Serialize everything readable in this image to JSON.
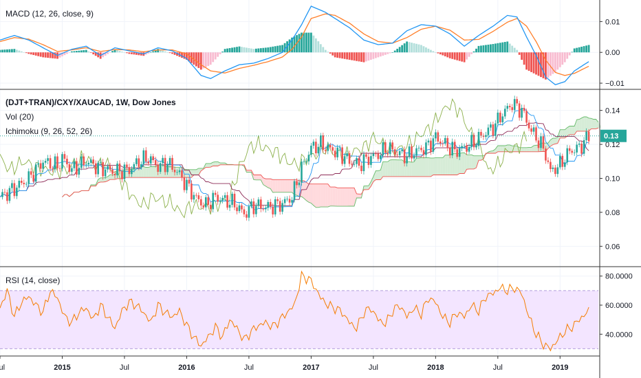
{
  "colors": {
    "up": "#26a69a",
    "up_light": "#b2dfdb",
    "down": "#ef5350",
    "down_light": "#f8bbd0",
    "macd_line": "#2196f3",
    "signal_line": "#ff7f2a",
    "rsi_line": "#f57c00",
    "rsi_band": "#f3e5ff",
    "rsi_band_border": "#b39ddb",
    "tenkan": "#2196f3",
    "kijun": "#8d2b57",
    "chikou": "#8bb04a",
    "span_a": "#66bb6a",
    "span_b": "#ef5350",
    "cloud_bull": "#c8e6c9",
    "cloud_bear": "#ffcdd2",
    "price_tag": "#26a69a",
    "pane_border": "#333333",
    "grid": "#f0f3fa"
  },
  "macd_pane": {
    "title": "MACD (12, 26, close, 9)",
    "axis_ticks": [
      {
        "value": 0.01,
        "label": "0.01"
      },
      {
        "value": 0.0,
        "label": "0.00"
      },
      {
        "value": -0.01,
        "label": "−0.01"
      }
    ]
  },
  "price_pane": {
    "title": "(DJT+TRAN)/CXY/XAUCAD, 1W, Dow Jones",
    "vol_title": "Vol (20)",
    "ichimoku_title": "Ichimoku (9, 26, 52, 26)",
    "axis_ticks": [
      {
        "value": 0.14,
        "label": "0.14"
      },
      {
        "value": 0.12,
        "label": "0.12"
      },
      {
        "value": 0.1,
        "label": "0.10"
      },
      {
        "value": 0.08,
        "label": "0.08"
      },
      {
        "value": 0.06,
        "label": "0.06"
      }
    ],
    "last_price_label": "0.13",
    "last_price_value": 0.125
  },
  "rsi_pane": {
    "title": "RSI (14, close)",
    "axis_ticks": [
      {
        "value": 80,
        "label": "80.0000"
      },
      {
        "value": 60,
        "label": "60.0000"
      },
      {
        "value": 40,
        "label": "40.0000"
      }
    ],
    "band_upper": 70,
    "band_lower": 30
  },
  "time_axis": [
    {
      "label": "Jul",
      "week": 0
    },
    {
      "label": "2015",
      "week": 26,
      "bold": true
    },
    {
      "label": "Jul",
      "week": 52
    },
    {
      "label": "2016",
      "week": 78,
      "bold": true
    },
    {
      "label": "Jul",
      "week": 104
    },
    {
      "label": "2017",
      "week": 130,
      "bold": true
    },
    {
      "label": "Jul",
      "week": 156
    },
    {
      "label": "2018",
      "week": 182,
      "bold": true
    },
    {
      "label": "Jul",
      "week": 208
    },
    {
      "label": "2019",
      "week": 234,
      "bold": true
    }
  ],
  "chart_data": [
    {
      "type": "line",
      "title": "MACD (12, 26, close, 9)",
      "x_unit": "weeks since Jul 2014",
      "ylim": [
        -0.012,
        0.017
      ],
      "series": [
        {
          "name": "MACD",
          "points": [
            [
              0,
              0.004
            ],
            [
              6,
              0.0055
            ],
            [
              12,
              0.004
            ],
            [
              18,
              0.0015
            ],
            [
              24,
              -0.001
            ],
            [
              30,
              0.001
            ],
            [
              36,
              0.002
            ],
            [
              42,
              -0.001
            ],
            [
              48,
              0.0015
            ],
            [
              54,
              0.0005
            ],
            [
              60,
              -0.0005
            ],
            [
              66,
              0.0015
            ],
            [
              72,
              0.0005
            ],
            [
              78,
              -0.002
            ],
            [
              84,
              -0.0075
            ],
            [
              88,
              -0.0085
            ],
            [
              94,
              -0.006
            ],
            [
              100,
              -0.004
            ],
            [
              106,
              -0.0035
            ],
            [
              112,
              -0.002
            ],
            [
              118,
              0.0
            ],
            [
              122,
              0.004
            ],
            [
              126,
              0.009
            ],
            [
              130,
              0.015
            ],
            [
              136,
              0.013
            ],
            [
              140,
              0.011
            ],
            [
              146,
              0.008
            ],
            [
              152,
              0.004
            ],
            [
              158,
              0.0025
            ],
            [
              164,
              0.003
            ],
            [
              170,
              0.007
            ],
            [
              176,
              0.009
            ],
            [
              182,
              0.0085
            ],
            [
              188,
              0.006
            ],
            [
              194,
              0.002
            ],
            [
              200,
              0.0055
            ],
            [
              206,
              0.0085
            ],
            [
              212,
              0.012
            ],
            [
              216,
              0.0115
            ],
            [
              220,
              0.005
            ],
            [
              224,
              -0.001
            ],
            [
              228,
              -0.008
            ],
            [
              232,
              -0.0105
            ],
            [
              236,
              -0.0095
            ],
            [
              240,
              -0.006
            ],
            [
              246,
              -0.003
            ]
          ]
        },
        {
          "name": "Signal",
          "points": [
            [
              0,
              0.0035
            ],
            [
              6,
              0.0048
            ],
            [
              12,
              0.0043
            ],
            [
              18,
              0.0025
            ],
            [
              24,
              0.0003
            ],
            [
              30,
              0.0008
            ],
            [
              36,
              0.0015
            ],
            [
              42,
              0.0003
            ],
            [
              48,
              0.0009
            ],
            [
              54,
              0.0008
            ],
            [
              60,
              0.0002
            ],
            [
              66,
              0.0008
            ],
            [
              72,
              0.0008
            ],
            [
              78,
              -0.0005
            ],
            [
              84,
              -0.004
            ],
            [
              88,
              -0.006
            ],
            [
              94,
              -0.0067
            ],
            [
              100,
              -0.0052
            ],
            [
              106,
              -0.0042
            ],
            [
              112,
              -0.003
            ],
            [
              118,
              -0.0015
            ],
            [
              122,
              0.001
            ],
            [
              126,
              0.005
            ],
            [
              130,
              0.011
            ],
            [
              136,
              0.0125
            ],
            [
              140,
              0.012
            ],
            [
              146,
              0.0095
            ],
            [
              152,
              0.006
            ],
            [
              158,
              0.0035
            ],
            [
              164,
              0.003
            ],
            [
              170,
              0.0048
            ],
            [
              176,
              0.0075
            ],
            [
              182,
              0.0085
            ],
            [
              188,
              0.0072
            ],
            [
              194,
              0.004
            ],
            [
              200,
              0.0042
            ],
            [
              206,
              0.0068
            ],
            [
              212,
              0.0098
            ],
            [
              216,
              0.011
            ],
            [
              220,
              0.0085
            ],
            [
              224,
              0.0035
            ],
            [
              228,
              -0.0025
            ],
            [
              232,
              -0.0065
            ],
            [
              236,
              -0.0075
            ],
            [
              240,
              -0.0068
            ],
            [
              246,
              -0.0045
            ]
          ]
        }
      ]
    },
    {
      "type": "line",
      "title": "(DJT+TRAN)/CXY/XAUCAD, 1W, Dow Jones",
      "x_unit": "weeks since Jul 2014",
      "ylim": [
        0.048,
        0.152
      ],
      "series": [
        {
          "name": "Close",
          "points": [
            [
              0,
              0.089
            ],
            [
              6,
              0.094
            ],
            [
              12,
              0.1
            ],
            [
              18,
              0.11
            ],
            [
              24,
              0.107
            ],
            [
              26,
              0.112
            ],
            [
              30,
              0.105
            ],
            [
              36,
              0.11
            ],
            [
              42,
              0.106
            ],
            [
              48,
              0.104
            ],
            [
              54,
              0.105
            ],
            [
              58,
              0.11
            ],
            [
              62,
              0.112
            ],
            [
              66,
              0.107
            ],
            [
              70,
              0.109
            ],
            [
              74,
              0.104
            ],
            [
              78,
              0.096
            ],
            [
              82,
              0.088
            ],
            [
              86,
              0.084
            ],
            [
              90,
              0.089
            ],
            [
              94,
              0.087
            ],
            [
              98,
              0.085
            ],
            [
              102,
              0.079
            ],
            [
              106,
              0.084
            ],
            [
              112,
              0.083
            ],
            [
              118,
              0.085
            ],
            [
              122,
              0.089
            ],
            [
              126,
              0.106
            ],
            [
              130,
              0.118
            ],
            [
              134,
              0.12
            ],
            [
              138,
              0.117
            ],
            [
              142,
              0.115
            ],
            [
              146,
              0.11
            ],
            [
              150,
              0.108
            ],
            [
              154,
              0.112
            ],
            [
              158,
              0.114
            ],
            [
              162,
              0.118
            ],
            [
              166,
              0.115
            ],
            [
              170,
              0.113
            ],
            [
              174,
              0.116
            ],
            [
              178,
              0.118
            ],
            [
              182,
              0.124
            ],
            [
              186,
              0.12
            ],
            [
              190,
              0.116
            ],
            [
              194,
              0.118
            ],
            [
              198,
              0.121
            ],
            [
              202,
              0.126
            ],
            [
              206,
              0.13
            ],
            [
              210,
              0.138
            ],
            [
              214,
              0.144
            ],
            [
              218,
              0.14
            ],
            [
              222,
              0.128
            ],
            [
              226,
              0.12
            ],
            [
              228,
              0.114
            ],
            [
              230,
              0.104
            ],
            [
              234,
              0.108
            ],
            [
              238,
              0.116
            ],
            [
              242,
              0.118
            ],
            [
              246,
              0.125
            ]
          ]
        }
      ]
    },
    {
      "type": "line",
      "title": "RSI (14, close)",
      "x_unit": "weeks since Jul 2014",
      "ylim": [
        25,
        86
      ],
      "series": [
        {
          "name": "RSI",
          "points": [
            [
              0,
              58
            ],
            [
              3,
              70
            ],
            [
              6,
              52
            ],
            [
              9,
              62
            ],
            [
              12,
              66
            ],
            [
              15,
              60
            ],
            [
              18,
              55
            ],
            [
              21,
              70
            ],
            [
              24,
              65
            ],
            [
              27,
              52
            ],
            [
              30,
              48
            ],
            [
              33,
              55
            ],
            [
              36,
              58
            ],
            [
              39,
              50
            ],
            [
              42,
              60
            ],
            [
              45,
              52
            ],
            [
              48,
              44
            ],
            [
              51,
              56
            ],
            [
              54,
              62
            ],
            [
              57,
              60
            ],
            [
              60,
              55
            ],
            [
              63,
              48
            ],
            [
              66,
              60
            ],
            [
              69,
              55
            ],
            [
              72,
              52
            ],
            [
              75,
              56
            ],
            [
              78,
              46
            ],
            [
              81,
              38
            ],
            [
              84,
              32
            ],
            [
              87,
              38
            ],
            [
              90,
              45
            ],
            [
              93,
              38
            ],
            [
              96,
              50
            ],
            [
              99,
              44
            ],
            [
              102,
              36
            ],
            [
              105,
              42
            ],
            [
              108,
              46
            ],
            [
              111,
              48
            ],
            [
              114,
              45
            ],
            [
              117,
              50
            ],
            [
              120,
              55
            ],
            [
              123,
              60
            ],
            [
              126,
              80
            ],
            [
              129,
              78
            ],
            [
              131,
              74
            ],
            [
              134,
              65
            ],
            [
              137,
              60
            ],
            [
              140,
              58
            ],
            [
              143,
              55
            ],
            [
              146,
              48
            ],
            [
              149,
              44
            ],
            [
              152,
              55
            ],
            [
              155,
              58
            ],
            [
              158,
              50
            ],
            [
              161,
              47
            ],
            [
              164,
              56
            ],
            [
              167,
              60
            ],
            [
              170,
              52
            ],
            [
              173,
              58
            ],
            [
              176,
              54
            ],
            [
              179,
              65
            ],
            [
              182,
              62
            ],
            [
              185,
              52
            ],
            [
              188,
              48
            ],
            [
              191,
              55
            ],
            [
              194,
              52
            ],
            [
              197,
              60
            ],
            [
              200,
              56
            ],
            [
              203,
              66
            ],
            [
              206,
              68
            ],
            [
              209,
              72
            ],
            [
              212,
              70
            ],
            [
              215,
              72
            ],
            [
              218,
              68
            ],
            [
              221,
              52
            ],
            [
              224,
              40
            ],
            [
              227,
              33
            ],
            [
              230,
              30
            ],
            [
              233,
              36
            ],
            [
              236,
              42
            ],
            [
              239,
              45
            ],
            [
              242,
              50
            ],
            [
              246,
              56
            ]
          ]
        }
      ]
    }
  ]
}
